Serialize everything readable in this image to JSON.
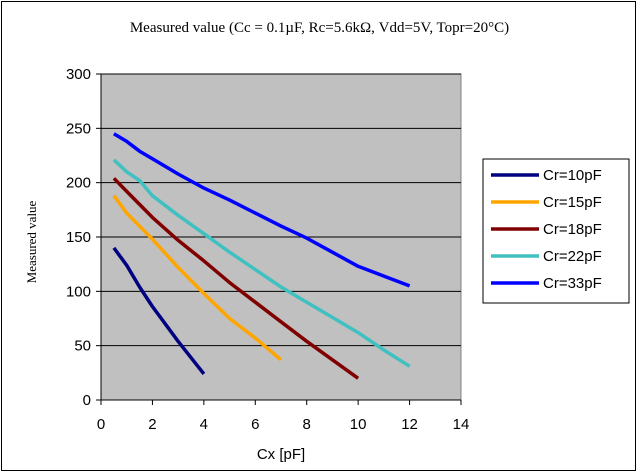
{
  "chart_data": {
    "type": "line",
    "title": "Measured value (Cc = 0.1µF, Rc=5.6kΩ, Vdd=5V, Topr=20°C)",
    "xlabel": "Cx [pF]",
    "ylabel": "Measured value",
    "xlim": [
      0,
      14
    ],
    "ylim": [
      0,
      300
    ],
    "xticks": [
      0,
      2,
      4,
      6,
      8,
      10,
      12,
      14
    ],
    "yticks": [
      0,
      50,
      100,
      150,
      200,
      250,
      300
    ],
    "grid": "horizontal",
    "legend": "right",
    "plot_background": "#c0c0c0",
    "series": [
      {
        "name": "Cr=10pF",
        "color": "#000080",
        "points": [
          [
            0.5,
            140
          ],
          [
            1,
            124
          ],
          [
            1.5,
            104
          ],
          [
            2,
            86
          ],
          [
            2.5,
            70
          ],
          [
            3,
            54
          ],
          [
            4,
            24
          ]
        ]
      },
      {
        "name": "Cr=15pF",
        "color": "#ffa500",
        "points": [
          [
            0.5,
            188
          ],
          [
            1,
            172
          ],
          [
            2,
            148
          ],
          [
            3,
            122
          ],
          [
            4,
            98
          ],
          [
            5,
            75
          ],
          [
            6,
            57
          ],
          [
            7,
            37
          ]
        ]
      },
      {
        "name": "Cr=18pF",
        "color": "#800000",
        "points": [
          [
            0.5,
            204
          ],
          [
            1,
            192
          ],
          [
            2,
            168
          ],
          [
            3,
            147
          ],
          [
            4,
            128
          ],
          [
            5,
            108
          ],
          [
            6,
            90
          ],
          [
            7,
            72
          ],
          [
            8,
            54
          ],
          [
            9,
            37
          ],
          [
            10,
            20
          ]
        ]
      },
      {
        "name": "Cr=22pF",
        "color": "#40c0c0",
        "points": [
          [
            0.5,
            221
          ],
          [
            1,
            210
          ],
          [
            1.5,
            202
          ],
          [
            2,
            188
          ],
          [
            3,
            170
          ],
          [
            4,
            153
          ],
          [
            5,
            136
          ],
          [
            6,
            120
          ],
          [
            7,
            104
          ],
          [
            8,
            90
          ],
          [
            9,
            76
          ],
          [
            10,
            62
          ],
          [
            11,
            46
          ],
          [
            12,
            31
          ]
        ]
      },
      {
        "name": "Cr=33pF",
        "color": "#0000ff",
        "points": [
          [
            0.5,
            245
          ],
          [
            1,
            238
          ],
          [
            1.5,
            229
          ],
          [
            2,
            222
          ],
          [
            3,
            208
          ],
          [
            4,
            195
          ],
          [
            5,
            184
          ],
          [
            6,
            172
          ],
          [
            7,
            160
          ],
          [
            8,
            149
          ],
          [
            9,
            136
          ],
          [
            10,
            123
          ],
          [
            11,
            114
          ],
          [
            12,
            105
          ]
        ]
      }
    ]
  }
}
